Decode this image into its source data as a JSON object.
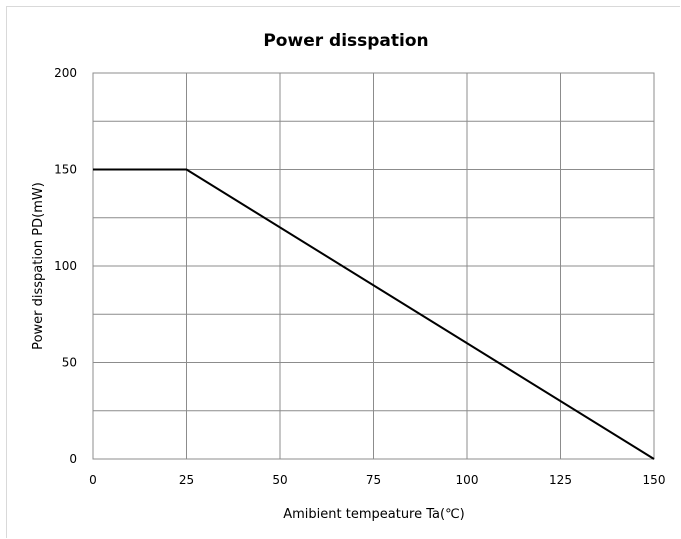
{
  "chart_data": {
    "type": "line",
    "title": "Power disspation",
    "xlabel": "Amibient tempeature Ta(℃)",
    "ylabel": "Power disspation PD(mW)",
    "xlim": [
      0,
      150
    ],
    "ylim": [
      0,
      200
    ],
    "x_ticks": [
      0,
      25,
      50,
      75,
      100,
      125,
      150
    ],
    "y_ticks": [
      0,
      50,
      100,
      150,
      200
    ],
    "y_minor_gridlines": [
      25,
      75,
      125,
      175
    ],
    "grid": true,
    "legend": "none",
    "series": [
      {
        "x": [
          0,
          25,
          150
        ],
        "y": [
          150,
          150,
          0
        ],
        "color": "#000000"
      }
    ]
  }
}
